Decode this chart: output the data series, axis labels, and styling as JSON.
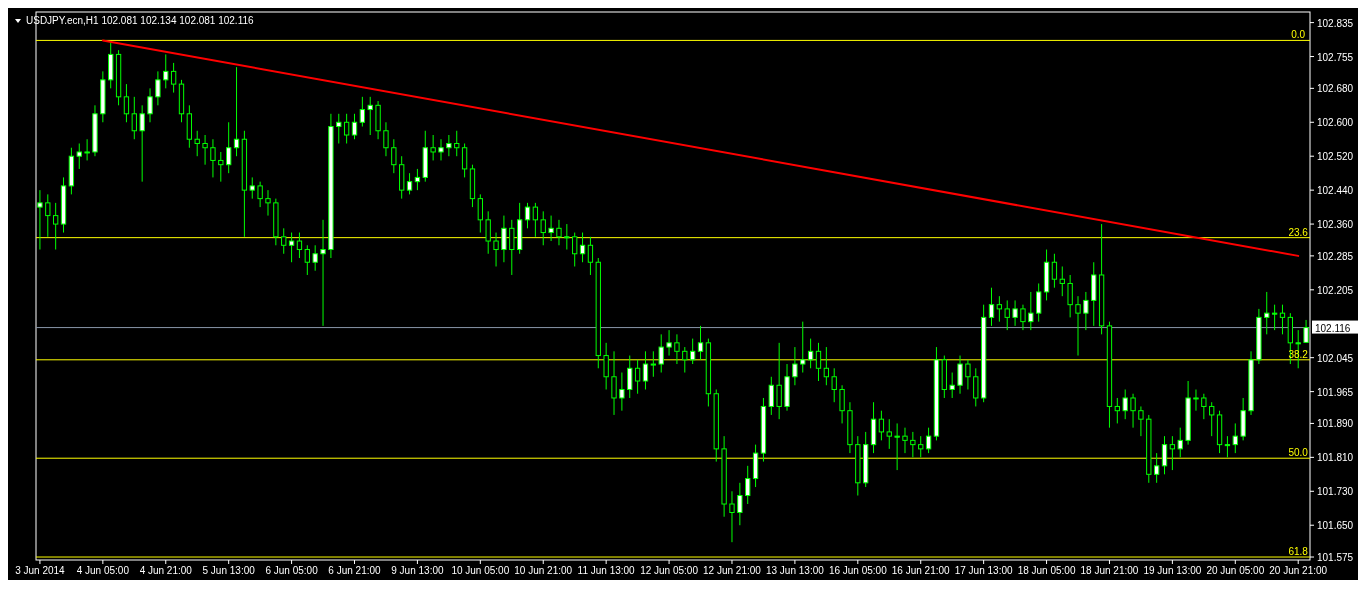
{
  "chart_data": {
    "type": "candlestick",
    "title": "USDJPY.ecn,H1  102.081 102.134 102.081 102.116",
    "categories": [
      "3 Jun 2014",
      null,
      null,
      null,
      null,
      null,
      null,
      null,
      "4 Jun 05:00",
      null,
      null,
      null,
      null,
      null,
      null,
      null,
      "4 Jun 21:00",
      null,
      null,
      null,
      null,
      null,
      null,
      null,
      "5 Jun 13:00",
      null,
      null,
      null,
      null,
      null,
      null,
      null,
      "6 Jun 05:00",
      null,
      null,
      null,
      null,
      null,
      null,
      null,
      "6 Jun 21:00",
      null,
      null,
      null,
      null,
      null,
      null,
      null,
      "9 Jun 13:00",
      null,
      null,
      null,
      null,
      null,
      null,
      null,
      "10 Jun 05:00",
      null,
      null,
      null,
      null,
      null,
      null,
      null,
      "10 Jun 21:00",
      null,
      null,
      null,
      null,
      null,
      null,
      null,
      "11 Jun 13:00",
      null,
      null,
      null,
      null,
      null,
      null,
      null,
      "12 Jun 05:00",
      null,
      null,
      null,
      null,
      null,
      null,
      null,
      "12 Jun 21:00",
      null,
      null,
      null,
      null,
      null,
      null,
      null,
      "13 Jun 13:00",
      null,
      null,
      null,
      null,
      null,
      null,
      null,
      "16 Jun 05:00",
      null,
      null,
      null,
      null,
      null,
      null,
      null,
      "16 Jun 21:00",
      null,
      null,
      null,
      null,
      null,
      null,
      null,
      "17 Jun 13:00",
      null,
      null,
      null,
      null,
      null,
      null,
      null,
      "18 Jun 05:00",
      null,
      null,
      null,
      null,
      null,
      null,
      null,
      "18 Jun 21:00",
      null,
      null,
      null,
      null,
      null,
      null,
      null,
      "19 Jun 13:00",
      null,
      null,
      null,
      null,
      null,
      null,
      null,
      "20 Jun 05:00",
      null,
      null,
      null,
      null,
      null,
      null,
      null,
      "20 Jun 21:00",
      null
    ],
    "ylim": [
      101.568,
      102.86
    ],
    "yticks": [
      102.835,
      102.755,
      {
        "value": 102.68,
        "label": "102.680"
      },
      {
        "value": 102.6,
        "label": "102.600"
      },
      {
        "value": 102.52,
        "label": "102.520"
      },
      {
        "value": 102.44,
        "label": "102.440"
      },
      {
        "value": 102.36,
        "label": "102.360"
      },
      102.285,
      102.205,
      102.045,
      101.965,
      {
        "value": 101.89,
        "label": "101.890"
      },
      {
        "value": 101.81,
        "label": "101.810"
      },
      {
        "value": 101.73,
        "label": "101.730"
      },
      {
        "value": 101.65,
        "label": "101.650"
      },
      101.575
    ],
    "grid": false,
    "annotations": [
      {
        "text": "0.0",
        "x": "20 Jun 21:00",
        "y": 102.793
      },
      {
        "text": "23.6",
        "x": "20 Jun 21:00",
        "y": 102.328
      },
      {
        "text": "38.2",
        "x": "20 Jun 21:00",
        "y": 102.04
      },
      {
        "text": "50.0",
        "x": "20 Jun 21:00",
        "y": 101.808
      },
      {
        "text": "61.8",
        "x": "20 Jun 21:00",
        "y": 101.575
      }
    ],
    "ref_lines": [
      {
        "axis": "y",
        "value": 102.116,
        "label": "102.116",
        "color": "#8896a8"
      },
      {
        "axis": "y",
        "value": 102.793,
        "color": "#ffff00"
      },
      {
        "axis": "y",
        "value": 102.328,
        "color": "#ffff00"
      },
      {
        "axis": "y",
        "value": 102.04,
        "color": "#ffff00"
      },
      {
        "axis": "y",
        "value": 101.808,
        "color": "#ffff00"
      },
      {
        "axis": "y",
        "value": 101.575,
        "color": "#ffff00"
      }
    ],
    "series": [
      {
        "color": "#00ff00",
        "ohlc": [
          [
            102.4,
            102.44,
            102.3,
            102.41
          ],
          [
            102.41,
            102.43,
            102.33,
            102.38
          ],
          [
            102.38,
            102.41,
            102.3,
            102.36
          ],
          [
            102.36,
            102.47,
            102.34,
            102.45
          ],
          [
            102.45,
            102.54,
            102.43,
            102.52
          ],
          [
            102.52,
            102.55,
            102.49,
            102.53
          ],
          [
            102.53,
            102.56,
            102.51,
            102.53
          ],
          [
            102.53,
            102.64,
            102.52,
            102.62
          ],
          [
            102.62,
            102.72,
            102.6,
            102.7
          ],
          [
            102.7,
            102.79,
            102.68,
            102.76
          ],
          [
            102.76,
            102.77,
            102.64,
            102.66
          ],
          [
            102.66,
            102.69,
            102.6,
            102.62
          ],
          [
            102.62,
            102.66,
            102.56,
            102.58
          ],
          [
            102.58,
            102.64,
            102.46,
            102.62
          ],
          [
            102.62,
            102.68,
            102.6,
            102.66
          ],
          [
            102.66,
            102.72,
            102.64,
            102.7
          ],
          [
            102.7,
            102.76,
            102.68,
            102.72
          ],
          [
            102.72,
            102.74,
            102.67,
            102.69
          ],
          [
            102.69,
            102.7,
            102.6,
            102.62
          ],
          [
            102.62,
            102.64,
            102.54,
            102.56
          ],
          [
            102.56,
            102.58,
            102.52,
            102.55
          ],
          [
            102.55,
            102.57,
            102.5,
            102.54
          ],
          [
            102.54,
            102.56,
            102.47,
            102.51
          ],
          [
            102.51,
            102.53,
            102.46,
            102.5
          ],
          [
            102.5,
            102.6,
            102.48,
            102.54
          ],
          [
            102.54,
            102.73,
            102.52,
            102.56
          ],
          [
            102.56,
            102.58,
            102.33,
            102.44
          ],
          [
            102.44,
            102.47,
            102.42,
            102.45
          ],
          [
            102.45,
            102.46,
            102.4,
            102.42
          ],
          [
            102.42,
            102.44,
            102.38,
            102.41
          ],
          [
            102.41,
            102.42,
            102.31,
            102.33
          ],
          [
            102.33,
            102.35,
            102.29,
            102.31
          ],
          [
            102.31,
            102.34,
            102.27,
            102.32
          ],
          [
            102.32,
            102.34,
            102.28,
            102.3
          ],
          [
            102.3,
            102.31,
            102.24,
            102.27
          ],
          [
            102.27,
            102.31,
            102.25,
            102.29
          ],
          [
            102.29,
            102.37,
            102.12,
            102.3
          ],
          [
            102.3,
            102.62,
            102.28,
            102.59
          ],
          [
            102.59,
            102.62,
            102.55,
            102.6
          ],
          [
            102.6,
            102.62,
            102.55,
            102.57
          ],
          [
            102.57,
            102.62,
            102.56,
            102.6
          ],
          [
            102.6,
            102.66,
            102.59,
            102.63
          ],
          [
            102.63,
            102.66,
            102.57,
            102.64
          ],
          [
            102.64,
            102.65,
            102.56,
            102.58
          ],
          [
            102.58,
            102.6,
            102.52,
            102.54
          ],
          [
            102.54,
            102.56,
            102.48,
            102.5
          ],
          [
            102.5,
            102.52,
            102.42,
            102.44
          ],
          [
            102.44,
            102.48,
            102.43,
            102.46
          ],
          [
            102.46,
            102.49,
            102.44,
            102.47
          ],
          [
            102.47,
            102.58,
            102.46,
            102.54
          ],
          [
            102.54,
            102.57,
            102.51,
            102.53
          ],
          [
            102.53,
            102.56,
            102.51,
            102.54
          ],
          [
            102.54,
            102.57,
            102.52,
            102.55
          ],
          [
            102.55,
            102.58,
            102.52,
            102.54
          ],
          [
            102.54,
            102.55,
            102.47,
            102.49
          ],
          [
            102.49,
            102.5,
            102.4,
            102.42
          ],
          [
            102.42,
            102.43,
            102.34,
            102.37
          ],
          [
            102.37,
            102.39,
            102.29,
            102.32
          ],
          [
            102.32,
            102.34,
            102.26,
            102.3
          ],
          [
            102.3,
            102.38,
            102.27,
            102.35
          ],
          [
            102.35,
            102.37,
            102.24,
            102.3
          ],
          [
            102.3,
            102.41,
            102.29,
            102.37
          ],
          [
            102.37,
            102.41,
            102.35,
            102.4
          ],
          [
            102.4,
            102.41,
            102.33,
            102.37
          ],
          [
            102.37,
            102.39,
            102.31,
            102.34
          ],
          [
            102.34,
            102.38,
            102.32,
            102.35
          ],
          [
            102.35,
            102.37,
            102.31,
            102.33
          ],
          [
            102.33,
            102.36,
            102.3,
            102.33
          ],
          [
            102.33,
            102.34,
            102.26,
            102.29
          ],
          [
            102.29,
            102.34,
            102.27,
            102.31
          ],
          [
            102.31,
            102.33,
            102.24,
            102.27
          ],
          [
            102.27,
            102.28,
            102.02,
            102.05
          ],
          [
            102.05,
            102.08,
            101.97,
            102.0
          ],
          [
            102.0,
            102.06,
            101.91,
            101.95
          ],
          [
            101.95,
            102.01,
            101.92,
            101.97
          ],
          [
            101.97,
            102.05,
            101.95,
            102.02
          ],
          [
            102.02,
            102.04,
            101.96,
            101.99
          ],
          [
            101.99,
            102.06,
            101.97,
            102.03
          ],
          [
            102.03,
            102.06,
            102.0,
            102.03
          ],
          [
            102.03,
            102.1,
            102.01,
            102.07
          ],
          [
            102.07,
            102.11,
            102.05,
            102.08
          ],
          [
            102.08,
            102.1,
            102.03,
            102.06
          ],
          [
            102.06,
            102.07,
            102.01,
            102.04
          ],
          [
            102.04,
            102.09,
            102.03,
            102.06
          ],
          [
            102.06,
            102.12,
            102.04,
            102.08
          ],
          [
            102.08,
            102.09,
            101.93,
            101.96
          ],
          [
            101.96,
            101.97,
            101.8,
            101.83
          ],
          [
            101.83,
            101.86,
            101.67,
            101.7
          ],
          [
            101.7,
            101.73,
            101.61,
            101.68
          ],
          [
            101.68,
            101.75,
            101.65,
            101.72
          ],
          [
            101.72,
            101.79,
            101.7,
            101.76
          ],
          [
            101.76,
            101.84,
            101.74,
            101.82
          ],
          [
            101.82,
            101.95,
            101.8,
            101.93
          ],
          [
            101.93,
            102.0,
            101.91,
            101.98
          ],
          [
            101.98,
            102.08,
            101.9,
            101.93
          ],
          [
            101.93,
            102.03,
            101.92,
            102.0
          ],
          [
            102.0,
            102.07,
            101.98,
            102.03
          ],
          [
            102.03,
            102.13,
            102.01,
            102.04
          ],
          [
            102.04,
            102.09,
            102.02,
            102.06
          ],
          [
            102.06,
            102.08,
            101.99,
            102.02
          ],
          [
            102.02,
            102.07,
            101.98,
            102.0
          ],
          [
            102.0,
            102.02,
            101.94,
            101.97
          ],
          [
            101.97,
            101.98,
            101.89,
            101.92
          ],
          [
            101.92,
            101.94,
            101.82,
            101.84
          ],
          [
            101.84,
            101.86,
            101.72,
            101.75
          ],
          [
            101.75,
            101.87,
            101.74,
            101.84
          ],
          [
            101.84,
            101.94,
            101.82,
            101.9
          ],
          [
            101.9,
            101.92,
            101.85,
            101.87
          ],
          [
            101.87,
            101.9,
            101.83,
            101.86
          ],
          [
            101.86,
            101.89,
            101.78,
            101.86
          ],
          [
            101.86,
            101.88,
            101.82,
            101.85
          ],
          [
            101.85,
            101.87,
            101.81,
            101.84
          ],
          [
            101.84,
            101.86,
            101.81,
            101.83
          ],
          [
            101.83,
            101.88,
            101.82,
            101.86
          ],
          [
            101.86,
            102.07,
            101.85,
            102.04
          ],
          [
            102.04,
            102.05,
            101.95,
            101.97
          ],
          [
            101.97,
            102.01,
            101.95,
            101.98
          ],
          [
            101.98,
            102.05,
            101.96,
            102.03
          ],
          [
            102.03,
            102.04,
            101.97,
            102.0
          ],
          [
            102.0,
            102.02,
            101.93,
            101.95
          ],
          [
            101.95,
            102.17,
            101.94,
            102.14
          ],
          [
            102.14,
            102.21,
            102.12,
            102.17
          ],
          [
            102.17,
            102.19,
            102.13,
            102.16
          ],
          [
            102.16,
            102.18,
            102.11,
            102.14
          ],
          [
            102.14,
            102.18,
            102.12,
            102.16
          ],
          [
            102.16,
            102.17,
            102.11,
            102.13
          ],
          [
            102.13,
            102.2,
            102.11,
            102.15
          ],
          [
            102.15,
            102.22,
            102.13,
            102.2
          ],
          [
            102.2,
            102.3,
            102.18,
            102.27
          ],
          [
            102.27,
            102.29,
            102.21,
            102.23
          ],
          [
            102.23,
            102.26,
            102.19,
            102.22
          ],
          [
            102.22,
            102.24,
            102.14,
            102.17
          ],
          [
            102.17,
            102.19,
            102.05,
            102.15
          ],
          [
            102.15,
            102.2,
            102.11,
            102.18
          ],
          [
            102.18,
            102.27,
            102.12,
            102.24
          ],
          [
            102.24,
            102.36,
            102.1,
            102.12
          ],
          [
            102.12,
            102.13,
            101.88,
            101.93
          ],
          [
            101.93,
            101.95,
            101.89,
            101.92
          ],
          [
            101.92,
            101.97,
            101.9,
            101.95
          ],
          [
            101.95,
            101.96,
            101.88,
            101.92
          ],
          [
            101.92,
            101.93,
            101.86,
            101.9
          ],
          [
            101.9,
            101.91,
            101.75,
            101.77
          ],
          [
            101.77,
            101.82,
            101.75,
            101.79
          ],
          [
            101.79,
            101.86,
            101.77,
            101.84
          ],
          [
            101.84,
            101.86,
            101.78,
            101.83
          ],
          [
            101.83,
            101.88,
            101.81,
            101.85
          ],
          [
            101.85,
            101.99,
            101.84,
            101.95
          ],
          [
            101.95,
            101.97,
            101.92,
            101.95
          ],
          [
            101.95,
            101.96,
            101.9,
            101.93
          ],
          [
            101.93,
            101.94,
            101.86,
            101.91
          ],
          [
            101.91,
            101.92,
            101.82,
            101.84
          ],
          [
            101.84,
            101.86,
            101.81,
            101.84
          ],
          [
            101.84,
            101.89,
            101.82,
            101.86
          ],
          [
            101.86,
            101.95,
            101.85,
            101.92
          ],
          [
            101.92,
            102.06,
            101.91,
            102.04
          ],
          [
            102.04,
            102.16,
            102.03,
            102.14
          ],
          [
            102.14,
            102.2,
            102.1,
            102.15
          ],
          [
            102.15,
            102.17,
            102.11,
            102.15
          ],
          [
            102.15,
            102.17,
            102.1,
            102.14
          ],
          [
            102.14,
            102.15,
            102.03,
            102.08
          ],
          [
            102.08,
            102.11,
            102.02,
            102.08
          ],
          [
            102.081,
            102.134,
            102.081,
            102.116
          ]
        ]
      },
      {
        "type": "line",
        "color": "#ff0000",
        "x": [
          "4 Jun 05:00",
          "20 Jun 21:00"
        ],
        "values": [
          102.793,
          102.285
        ]
      }
    ]
  }
}
